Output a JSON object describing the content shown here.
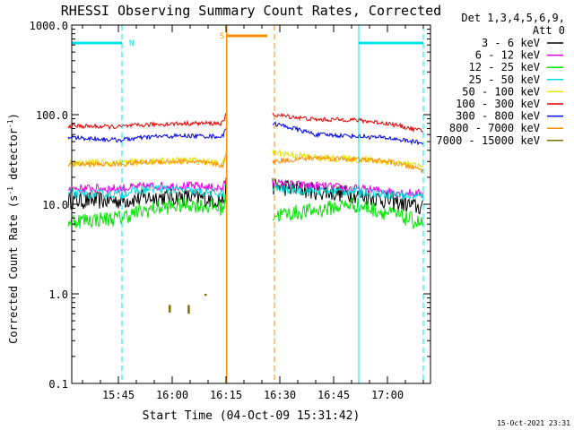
{
  "chart_data": {
    "type": "line",
    "title": "RHESSI Observing Summary Count Rates, Corrected",
    "xlabel": "Start Time (04-Oct-09 15:31:42)",
    "ylabel_main": "Corrected Count Rate (s",
    "ylabel_sup1": "-1",
    "ylabel_mid": " detector",
    "ylabel_sup2": "-1",
    "ylabel_end": ")",
    "timestamp": "15-Oct-2021 23:31",
    "x_range_min": [
      930,
      1162
    ],
    "y_range": [
      0.1,
      1000
    ],
    "y_scale": "log",
    "x_ticks": [
      {
        "t": 945,
        "label": "15:45"
      },
      {
        "t": 960,
        "label": "16:00"
      },
      {
        "t": 975,
        "label": "16:15"
      },
      {
        "t": 990,
        "label": "16:30"
      },
      {
        "t": 1005,
        "label": "16:45"
      },
      {
        "t": 1020,
        "label": "17:00"
      }
    ],
    "y_ticks": [
      {
        "v": 1000,
        "label": "1000.0"
      },
      {
        "v": 100,
        "label": "100.0"
      },
      {
        "v": 10,
        "label": "10.0"
      },
      {
        "v": 1,
        "label": "1.0"
      },
      {
        "v": 0.1,
        "label": "0.1"
      }
    ],
    "legend": {
      "header1": "Det 1,3,4,5,6,9,",
      "header2": "Att 0",
      "placement": "top-right outside plot"
    },
    "gaps": [
      [
        975.2,
        988
      ]
    ],
    "series": [
      {
        "name": "3 - 6 keV",
        "color": "#000000",
        "noise": 0.1,
        "segA": [
          [
            931,
            11
          ],
          [
            945,
            11
          ],
          [
            955,
            12
          ],
          [
            965,
            12
          ],
          [
            975,
            11
          ]
        ],
        "segB": [
          [
            988,
            16
          ],
          [
            1000,
            14
          ],
          [
            1010,
            13
          ],
          [
            1020,
            11
          ],
          [
            1030,
            9
          ]
        ]
      },
      {
        "name": "6 - 12 keV",
        "color": "#e400e4",
        "noise": 0.05,
        "segA": [
          [
            931,
            15
          ],
          [
            945,
            15
          ],
          [
            955,
            16
          ],
          [
            965,
            16
          ],
          [
            975,
            15
          ]
        ],
        "segB": [
          [
            988,
            17
          ],
          [
            1000,
            16
          ],
          [
            1010,
            15
          ],
          [
            1020,
            14
          ],
          [
            1030,
            13
          ]
        ]
      },
      {
        "name": "12 - 25 keV",
        "color": "#00e400",
        "noise": 0.09,
        "segA": [
          [
            931,
            6.5
          ],
          [
            945,
            7
          ],
          [
            955,
            9
          ],
          [
            965,
            10
          ],
          [
            975,
            9
          ]
        ],
        "segB": [
          [
            988,
            7.5
          ],
          [
            1000,
            8.5
          ],
          [
            1010,
            10
          ],
          [
            1020,
            8
          ],
          [
            1030,
            6
          ]
        ]
      },
      {
        "name": "25 - 50 keV",
        "color": "#00dcdc",
        "noise": 0.05,
        "segA": [
          [
            931,
            13
          ],
          [
            945,
            13
          ],
          [
            955,
            15
          ],
          [
            965,
            14
          ],
          [
            975,
            13
          ]
        ],
        "segB": [
          [
            988,
            15
          ],
          [
            1000,
            14
          ],
          [
            1010,
            14
          ],
          [
            1020,
            13
          ],
          [
            1030,
            12
          ]
        ]
      },
      {
        "name": "50 - 100 keV",
        "color": "#e4e400",
        "noise": 0.04,
        "segA": [
          [
            931,
            29
          ],
          [
            945,
            29
          ],
          [
            955,
            30
          ],
          [
            965,
            31
          ],
          [
            975,
            28
          ]
        ],
        "segB": [
          [
            988,
            38
          ],
          [
            1000,
            33
          ],
          [
            1010,
            32
          ],
          [
            1020,
            30
          ],
          [
            1030,
            26
          ]
        ]
      },
      {
        "name": "100 - 300 keV",
        "color": "#e40000",
        "noise": 0.025,
        "segA": [
          [
            931,
            75
          ],
          [
            945,
            73
          ],
          [
            955,
            78
          ],
          [
            965,
            80
          ],
          [
            975,
            80
          ]
        ],
        "segB": [
          [
            988,
            100
          ],
          [
            1000,
            88
          ],
          [
            1010,
            88
          ],
          [
            1020,
            80
          ],
          [
            1030,
            65
          ]
        ]
      },
      {
        "name": "300 - 800 keV",
        "color": "#0000e4",
        "noise": 0.025,
        "segA": [
          [
            931,
            56
          ],
          [
            945,
            52
          ],
          [
            955,
            57
          ],
          [
            965,
            58
          ],
          [
            975,
            57
          ]
        ],
        "segB": [
          [
            988,
            80
          ],
          [
            1000,
            60
          ],
          [
            1010,
            58
          ],
          [
            1020,
            55
          ],
          [
            1030,
            48
          ]
        ]
      },
      {
        "name": "800 - 7000 keV",
        "color": "#ff8c00",
        "noise": 0.03,
        "segA": [
          [
            931,
            28
          ],
          [
            945,
            28
          ],
          [
            955,
            30
          ],
          [
            965,
            30
          ],
          [
            975,
            27
          ]
        ],
        "segB": [
          [
            988,
            30
          ],
          [
            1000,
            33
          ],
          [
            1010,
            32
          ],
          [
            1020,
            30
          ],
          [
            1030,
            24
          ]
        ]
      },
      {
        "name": "7000 - 15000 keV",
        "color": "#7f6f00",
        "noise": 0,
        "segA": [],
        "segB": []
      }
    ],
    "annotations": [
      {
        "label": "N",
        "color": "#00e4e4",
        "type": "night"
      },
      {
        "label": "S",
        "color": "#ff8c00",
        "type": "saa"
      }
    ]
  }
}
